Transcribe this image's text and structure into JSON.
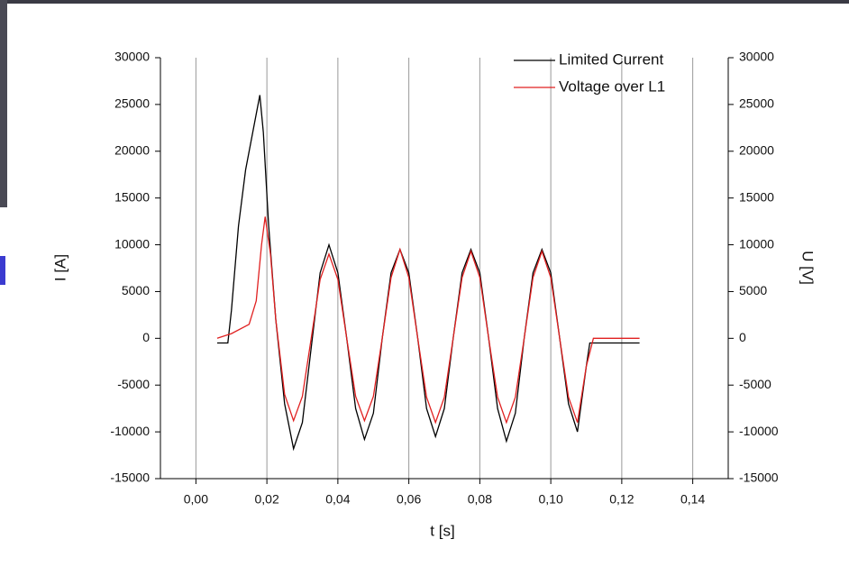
{
  "chart_data": {
    "type": "line",
    "xlabel": "t [s]",
    "ylabel": "I [A]",
    "y2label": "U [V]",
    "xlim": [
      -0.01,
      0.15
    ],
    "xticks": [
      {
        "value": 0,
        "label": "0,00"
      },
      {
        "value": 0.02,
        "label": "0,02"
      },
      {
        "value": 0.04,
        "label": "0,04"
      },
      {
        "value": 0.06,
        "label": "0,06"
      },
      {
        "value": 0.08,
        "label": "0,08"
      },
      {
        "value": 0.1,
        "label": "0,10"
      },
      {
        "value": 0.12,
        "label": "0,12"
      },
      {
        "value": 0.14,
        "label": "0,14"
      }
    ],
    "ylim": [
      -15000,
      30000
    ],
    "yticks": [
      -15000,
      -10000,
      -5000,
      0,
      5000,
      10000,
      15000,
      20000,
      25000,
      30000
    ],
    "y2lim": [
      -15000,
      30000
    ],
    "y2ticks": [
      -15000,
      -10000,
      -5000,
      0,
      5000,
      10000,
      15000,
      20000,
      25000,
      30000
    ],
    "grid": "x",
    "legend": "upper right",
    "series": [
      {
        "name": "Limited Current",
        "color": "#000000",
        "axis": "y",
        "x": [
          0.006,
          0.009,
          0.01,
          0.012,
          0.014,
          0.016,
          0.018,
          0.019,
          0.0205,
          0.0225,
          0.025,
          0.0275,
          0.03,
          0.0325,
          0.035,
          0.0375,
          0.04,
          0.0425,
          0.045,
          0.0475,
          0.05,
          0.0525,
          0.055,
          0.0575,
          0.06,
          0.0625,
          0.065,
          0.0675,
          0.07,
          0.0725,
          0.075,
          0.0775,
          0.08,
          0.0825,
          0.085,
          0.0875,
          0.09,
          0.0925,
          0.095,
          0.0975,
          0.1,
          0.1025,
          0.105,
          0.1075,
          0.11,
          0.111,
          0.125
        ],
        "values": [
          -500,
          -500,
          3000,
          12000,
          18000,
          22000,
          26000,
          22000,
          12000,
          2000,
          -7000,
          -11800,
          -9000,
          -1000,
          7000,
          10000,
          7000,
          0,
          -7500,
          -10800,
          -8000,
          0,
          7000,
          9500,
          7000,
          0,
          -7500,
          -10500,
          -7500,
          0,
          7000,
          9500,
          7000,
          0,
          -7500,
          -11000,
          -8000,
          0,
          7000,
          9500,
          7000,
          0,
          -7000,
          -10000,
          -3000,
          -500,
          -500
        ]
      },
      {
        "name": "Voltage over L1",
        "color": "#e02020",
        "axis": "y2",
        "x": [
          0.006,
          0.01,
          0.015,
          0.017,
          0.0185,
          0.0195,
          0.021,
          0.0225,
          0.025,
          0.0275,
          0.03,
          0.0325,
          0.035,
          0.0375,
          0.04,
          0.0425,
          0.045,
          0.0475,
          0.05,
          0.0525,
          0.055,
          0.0575,
          0.06,
          0.0625,
          0.065,
          0.0675,
          0.07,
          0.0725,
          0.075,
          0.0775,
          0.08,
          0.0825,
          0.085,
          0.0875,
          0.09,
          0.0925,
          0.095,
          0.0975,
          0.1,
          0.1025,
          0.105,
          0.1075,
          0.11,
          0.112,
          0.125
        ],
        "values": [
          0,
          500,
          1500,
          4000,
          10000,
          13000,
          9000,
          2000,
          -6000,
          -8800,
          -6200,
          0,
          6300,
          9000,
          6300,
          0,
          -6200,
          -8800,
          -6200,
          0,
          6500,
          9500,
          6500,
          0,
          -6300,
          -9000,
          -6300,
          0,
          6500,
          9300,
          6500,
          0,
          -6300,
          -9000,
          -6300,
          0,
          6500,
          9300,
          6500,
          0,
          -6300,
          -9000,
          -3000,
          0,
          0
        ]
      }
    ]
  }
}
